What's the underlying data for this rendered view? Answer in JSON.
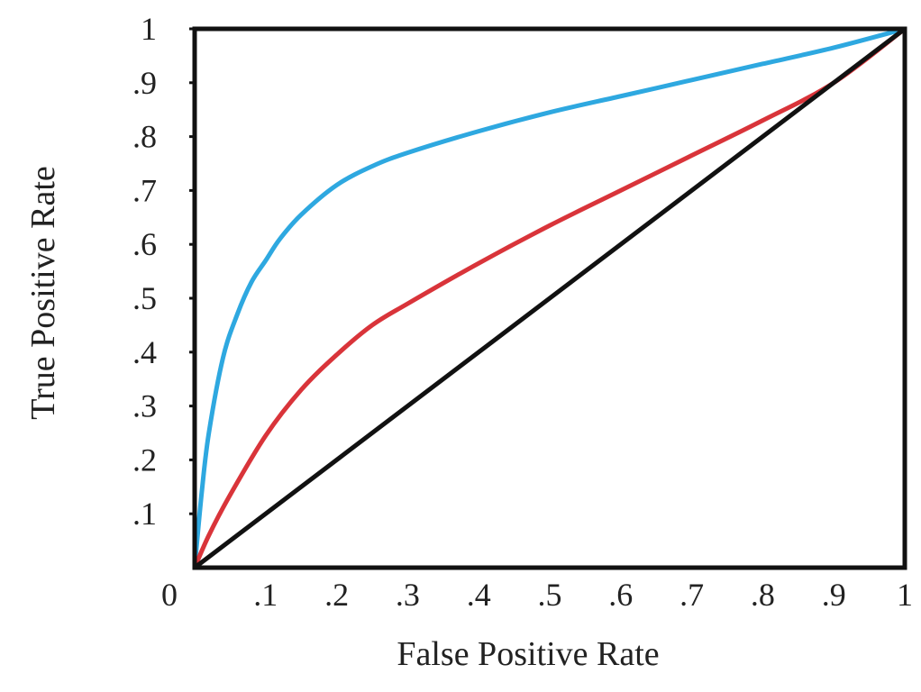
{
  "chart_data": {
    "type": "line",
    "title": "",
    "xlabel": "False Positive Rate",
    "ylabel": "True Positive Rate",
    "xlim": [
      0,
      1
    ],
    "ylim": [
      0,
      1
    ],
    "grid": false,
    "legend": "none",
    "x_ticks": [
      {
        "value": 0,
        "label": "0"
      },
      {
        "value": 0.1,
        "label": ".1"
      },
      {
        "value": 0.2,
        "label": ".2"
      },
      {
        "value": 0.3,
        "label": ".3"
      },
      {
        "value": 0.4,
        "label": ".4"
      },
      {
        "value": 0.5,
        "label": ".5"
      },
      {
        "value": 0.6,
        "label": ".6"
      },
      {
        "value": 0.7,
        "label": ".7"
      },
      {
        "value": 0.8,
        "label": ".8"
      },
      {
        "value": 0.9,
        "label": ".9"
      },
      {
        "value": 1,
        "label": "1"
      }
    ],
    "y_ticks": [
      {
        "value": 0.1,
        "label": ".1"
      },
      {
        "value": 0.2,
        "label": ".2"
      },
      {
        "value": 0.3,
        "label": ".3"
      },
      {
        "value": 0.4,
        "label": ".4"
      },
      {
        "value": 0.5,
        "label": ".5"
      },
      {
        "value": 0.6,
        "label": ".6"
      },
      {
        "value": 0.7,
        "label": ".7"
      },
      {
        "value": 0.8,
        "label": ".8"
      },
      {
        "value": 0.9,
        "label": ".9"
      },
      {
        "value": 1,
        "label": "1"
      }
    ],
    "series": [
      {
        "color": "#2ea8e0",
        "x": [
          0,
          0.01,
          0.02,
          0.04,
          0.06,
          0.08,
          0.1,
          0.12,
          0.15,
          0.2,
          0.25,
          0.3,
          0.4,
          0.5,
          0.6,
          0.7,
          0.8,
          0.9,
          1.0
        ],
        "y": [
          0,
          0.14,
          0.25,
          0.39,
          0.47,
          0.53,
          0.57,
          0.61,
          0.655,
          0.71,
          0.745,
          0.77,
          0.81,
          0.845,
          0.875,
          0.905,
          0.935,
          0.965,
          1.0
        ]
      },
      {
        "color": "#d9343a",
        "x": [
          0,
          0.02,
          0.05,
          0.1,
          0.15,
          0.2,
          0.25,
          0.3,
          0.4,
          0.5,
          0.6,
          0.7,
          0.8,
          0.9,
          1.0
        ],
        "y": [
          0,
          0.06,
          0.135,
          0.245,
          0.33,
          0.395,
          0.45,
          0.49,
          0.565,
          0.635,
          0.7,
          0.765,
          0.83,
          0.9,
          1.0
        ]
      },
      {
        "color": "#111111",
        "x": [
          0,
          1
        ],
        "y": [
          0,
          1
        ]
      }
    ]
  }
}
